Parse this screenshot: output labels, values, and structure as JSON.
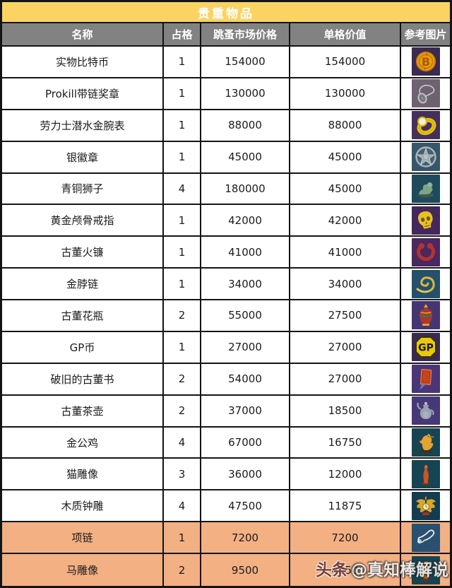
{
  "title": "贵重物品",
  "watermark": {
    "brand": "头条",
    "handle": "@真知棒解说"
  },
  "colors": {
    "title_bg": "#FBD362",
    "title_text": "#FFFFFF",
    "header_bg": "#828282",
    "header_text": "#FFFFFF",
    "row_bg": "#FFFFFF",
    "highlight_row_bg": "#F3B083",
    "border": "#141414"
  },
  "columns": [
    {
      "key": "name",
      "label": "名称"
    },
    {
      "key": "slots",
      "label": "占格"
    },
    {
      "key": "price",
      "label": "跳蚤市场价格"
    },
    {
      "key": "unit",
      "label": "单格价值"
    },
    {
      "key": "image",
      "label": "参考图片"
    }
  ],
  "rows": [
    {
      "name": "实物比特币",
      "slots": "1",
      "price": "154000",
      "unit": "154000",
      "icon": "bitcoin-coin-icon",
      "icon_bg": "#3A2B50",
      "highlight": false
    },
    {
      "name": "Prokill带链奖章",
      "slots": "1",
      "price": "130000",
      "unit": "130000",
      "icon": "medal-chain-icon",
      "icon_bg": "#6F6270",
      "highlight": false
    },
    {
      "name": "劳力士潜水金腕表",
      "slots": "1",
      "price": "88000",
      "unit": "88000",
      "icon": "gold-watch-icon",
      "icon_bg": "#45305C",
      "highlight": false
    },
    {
      "name": "银徽章",
      "slots": "1",
      "price": "45000",
      "unit": "45000",
      "icon": "silver-badge-icon",
      "icon_bg": "#375669",
      "highlight": false
    },
    {
      "name": "青铜狮子",
      "slots": "4",
      "price": "180000",
      "unit": "45000",
      "icon": "bronze-lion-icon",
      "icon_bg": "#1E4A5C",
      "highlight": false
    },
    {
      "name": "黄金颅骨戒指",
      "slots": "1",
      "price": "42000",
      "unit": "42000",
      "icon": "gold-skull-ring-icon",
      "icon_bg": "#44285C",
      "highlight": false
    },
    {
      "name": "古董火镰",
      "slots": "1",
      "price": "41000",
      "unit": "41000",
      "icon": "fire-striker-icon",
      "icon_bg": "#4A2860",
      "highlight": false
    },
    {
      "name": "金脖链",
      "slots": "1",
      "price": "34000",
      "unit": "34000",
      "icon": "gold-chain-icon",
      "icon_bg": "#24506A",
      "highlight": false
    },
    {
      "name": "古董花瓶",
      "slots": "2",
      "price": "55000",
      "unit": "27500",
      "icon": "antique-vase-icon",
      "icon_bg": "#443672",
      "highlight": false
    },
    {
      "name": "GP币",
      "slots": "1",
      "price": "27000",
      "unit": "27000",
      "icon": "gp-coin-icon",
      "icon_bg": "#392A52",
      "highlight": false
    },
    {
      "name": "破旧的古董书",
      "slots": "2",
      "price": "54000",
      "unit": "27000",
      "icon": "antique-book-icon",
      "icon_bg": "#4A3578",
      "highlight": false
    },
    {
      "name": "古董茶壶",
      "slots": "2",
      "price": "37000",
      "unit": "18500",
      "icon": "antique-teapot-icon",
      "icon_bg": "#473879",
      "highlight": false
    },
    {
      "name": "金公鸡",
      "slots": "4",
      "price": "67000",
      "unit": "16750",
      "icon": "gold-rooster-icon",
      "icon_bg": "#174452",
      "highlight": false
    },
    {
      "name": "猫雕像",
      "slots": "3",
      "price": "36000",
      "unit": "12000",
      "icon": "cat-figurine-icon",
      "icon_bg": "#174452",
      "highlight": false
    },
    {
      "name": "木质钟雕",
      "slots": "4",
      "price": "47500",
      "unit": "11875",
      "icon": "wooden-clock-icon",
      "icon_bg": "#143C50",
      "highlight": false
    },
    {
      "name": "项链",
      "slots": "1",
      "price": "7200",
      "unit": "7200",
      "icon": "necklace-icon",
      "icon_bg": "#2A5070",
      "highlight": true
    },
    {
      "name": "马雕像",
      "slots": "2",
      "price": "9500",
      "unit": "4750",
      "icon": "horse-figurine-icon",
      "icon_bg": "#174452",
      "highlight": true
    }
  ]
}
